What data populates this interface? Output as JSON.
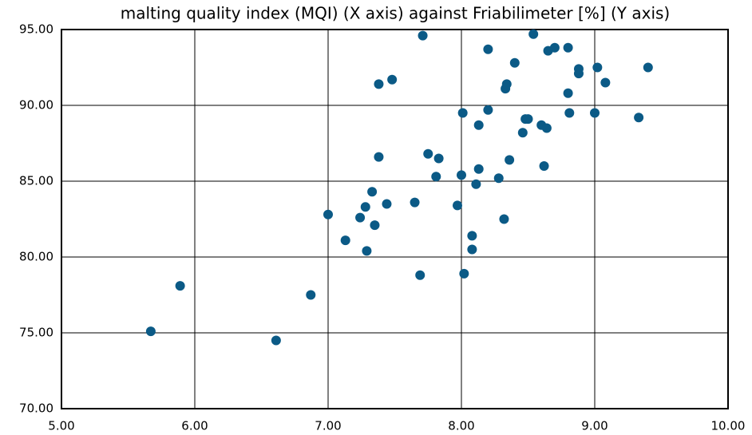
{
  "chart_data": {
    "type": "scatter",
    "title": "malting quality index (MQI) (X axis) against Friabilimeter [%] (Y axis)",
    "color": "#0b5a86",
    "xlim": [
      5,
      10
    ],
    "xticks": [
      {
        "value": 5,
        "label": "5.00"
      },
      {
        "value": 6,
        "label": "6.00"
      },
      {
        "value": 7,
        "label": "7.00"
      },
      {
        "value": 8,
        "label": "8.00"
      },
      {
        "value": 9,
        "label": "9.00"
      },
      {
        "value": 10,
        "label": "10.00"
      }
    ],
    "ylim": [
      70,
      95
    ],
    "yticks": [
      {
        "value": 70,
        "label": "70.00"
      },
      {
        "value": 75,
        "label": "75.00"
      },
      {
        "value": 80,
        "label": "80.00"
      },
      {
        "value": 85,
        "label": "85.00"
      },
      {
        "value": 90,
        "label": "90.00"
      },
      {
        "value": 95,
        "label": "95.00"
      }
    ],
    "grid": true,
    "x": [
      5.67,
      5.89,
      6.61,
      6.87,
      7.0,
      7.13,
      7.24,
      7.28,
      7.29,
      7.33,
      7.35,
      7.38,
      7.38,
      7.44,
      7.48,
      7.65,
      7.69,
      7.71,
      7.75,
      7.81,
      7.83,
      7.97,
      8.0,
      8.01,
      8.02,
      8.08,
      8.08,
      8.11,
      8.13,
      8.13,
      8.2,
      8.2,
      8.28,
      8.32,
      8.33,
      8.34,
      8.36,
      8.4,
      8.46,
      8.48,
      8.5,
      8.54,
      8.6,
      8.62,
      8.64,
      8.65,
      8.7,
      8.8,
      8.8,
      8.81,
      8.88,
      8.88,
      9.0,
      9.02,
      9.08,
      9.33,
      9.4
    ],
    "values": [
      75.1,
      78.1,
      74.5,
      77.5,
      82.8,
      81.1,
      82.6,
      83.3,
      80.4,
      84.3,
      82.1,
      91.4,
      86.6,
      83.5,
      91.7,
      83.6,
      78.8,
      94.6,
      86.8,
      85.3,
      86.5,
      83.4,
      85.4,
      89.5,
      78.9,
      81.4,
      80.5,
      84.8,
      85.8,
      88.7,
      93.7,
      89.7,
      85.2,
      82.5,
      91.1,
      91.4,
      86.4,
      92.8,
      88.2,
      89.1,
      89.1,
      94.7,
      88.7,
      86.0,
      88.5,
      93.6,
      93.8,
      93.8,
      90.8,
      89.5,
      92.4,
      92.1,
      89.5,
      92.5,
      91.5,
      89.2,
      92.5
    ]
  }
}
